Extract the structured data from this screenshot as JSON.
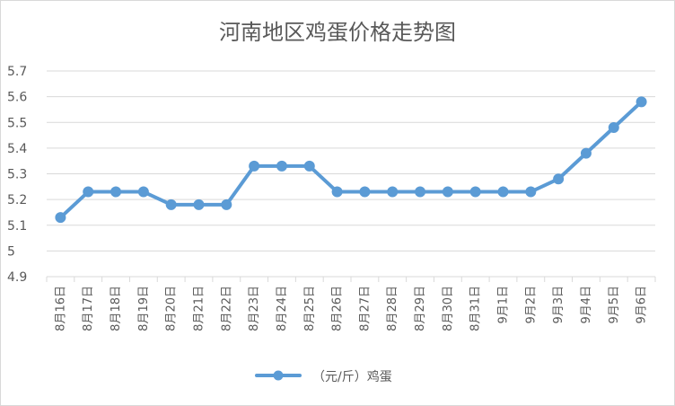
{
  "chart_data": {
    "type": "line",
    "title": "河南地区鸡蛋价格走势图",
    "xlabel": "",
    "ylabel": "",
    "categories": [
      "8月16日",
      "8月17日",
      "8月18日",
      "8月19日",
      "8月20日",
      "8月21日",
      "8月22日",
      "8月23日",
      "8月24日",
      "8月25日",
      "8月26日",
      "8月27日",
      "8月28日",
      "8月29日",
      "8月30日",
      "8月31日",
      "9月1日",
      "9月2日",
      "9月3日",
      "9月4日",
      "9月5日",
      "9月6日"
    ],
    "series": [
      {
        "name": "（元/斤）鸡蛋",
        "values": [
          5.13,
          5.23,
          5.23,
          5.23,
          5.18,
          5.18,
          5.18,
          5.33,
          5.33,
          5.33,
          5.23,
          5.23,
          5.23,
          5.23,
          5.23,
          5.23,
          5.23,
          5.23,
          5.28,
          5.38,
          5.48,
          5.58
        ],
        "color": "#5b9bd5"
      }
    ],
    "ylim": [
      4.9,
      5.7
    ],
    "yticks": [
      "5.7",
      "5.6",
      "5.5",
      "5.4",
      "5.3",
      "5.2",
      "5.1",
      "5",
      "4.9"
    ],
    "grid": true,
    "legend_position": "bottom",
    "colors": {
      "grid": "#d9d9d9",
      "axis_text": "#595959",
      "line": "#5b9bd5"
    }
  }
}
